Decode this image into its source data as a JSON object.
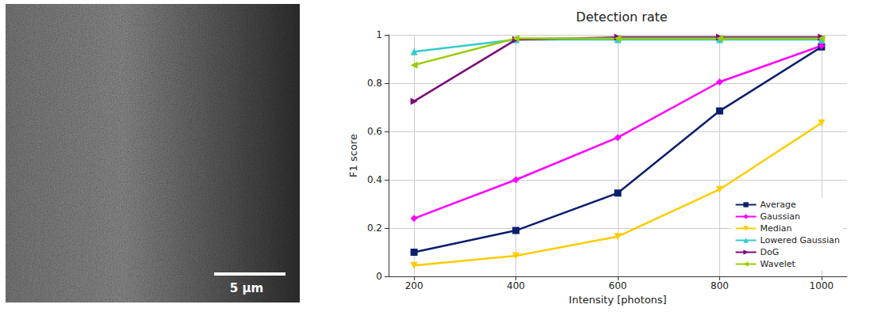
{
  "image": {
    "scale_bar_label": "5 µm"
  },
  "chart_data": {
    "type": "line",
    "title": "Detection rate",
    "x_label": "Intensity [photons]",
    "y_label": "F1 score",
    "x": [
      200,
      400,
      600,
      800,
      1000
    ],
    "xlim": [
      150,
      1050
    ],
    "xticks": [
      200,
      400,
      600,
      800,
      1000
    ],
    "ylim": [
      0,
      1
    ],
    "yticks": [
      0,
      0.2,
      0.4,
      0.6,
      0.8,
      1
    ],
    "grid": true,
    "legend": "lower right",
    "series": [
      {
        "name": "Average",
        "color": "#0b1f6e",
        "marker": "square",
        "values": [
          0.1,
          0.19,
          0.345,
          0.685,
          0.95
        ]
      },
      {
        "name": "Gaussian",
        "color": "#ff00ff",
        "marker": "diamond",
        "values": [
          0.24,
          0.4,
          0.575,
          0.805,
          0.955
        ]
      },
      {
        "name": "Median",
        "color": "#ffcc00",
        "marker": "triangle_down",
        "values": [
          0.045,
          0.085,
          0.165,
          0.36,
          0.635
        ]
      },
      {
        "name": "Lowered Gaussian",
        "color": "#33cccc",
        "marker": "triangle_up",
        "values": [
          0.93,
          0.98,
          0.98,
          0.98,
          0.98
        ]
      },
      {
        "name": "DoG",
        "color": "#7b0c7b",
        "marker": "triangle_right",
        "values": [
          0.725,
          0.98,
          0.99,
          0.99,
          0.99
        ]
      },
      {
        "name": "Wavelet",
        "color": "#99cc00",
        "marker": "triangle_left",
        "values": [
          0.875,
          0.985,
          0.985,
          0.985,
          0.985
        ]
      }
    ]
  }
}
